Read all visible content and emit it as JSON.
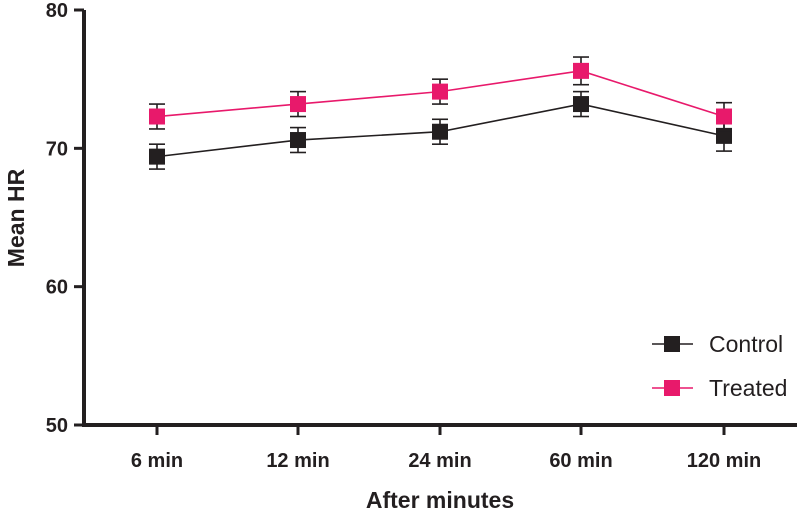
{
  "chart_data": {
    "type": "line",
    "title": "",
    "xlabel": "After minutes",
    "ylabel": "Mean HR",
    "categories": [
      "6 min",
      "12 min",
      "24 min",
      "60 min",
      "120 min"
    ],
    "ylim": [
      50,
      80
    ],
    "yticks": [
      "50",
      "60",
      "70",
      "80"
    ],
    "yticks_values": [
      50,
      60,
      70,
      80
    ],
    "grid": false,
    "legend_position": "bottom-right",
    "series": [
      {
        "name": "Control",
        "color": "#231f20",
        "marker": "square",
        "values": [
          69.4,
          70.6,
          71.2,
          73.2,
          70.9
        ],
        "errors": [
          0.9,
          0.9,
          0.9,
          0.9,
          1.1
        ]
      },
      {
        "name": "Treated",
        "color": "#e8196b",
        "marker": "square",
        "values": [
          72.3,
          73.2,
          74.1,
          75.6,
          72.3
        ],
        "errors": [
          0.9,
          0.9,
          0.9,
          1.0,
          1.0
        ]
      }
    ]
  }
}
